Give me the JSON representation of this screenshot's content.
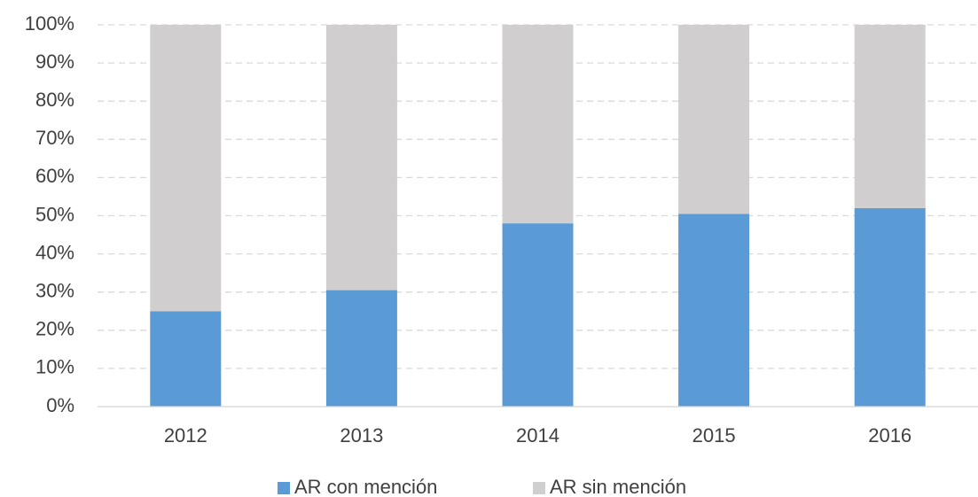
{
  "chart_data": {
    "type": "bar",
    "stacked": true,
    "categories": [
      "2012",
      "2013",
      "2014",
      "2015",
      "2016"
    ],
    "series": [
      {
        "name": "AR con mención",
        "color": "#5b9bd5",
        "values": [
          25,
          30.5,
          48,
          50.5,
          52
        ]
      },
      {
        "name": "AR sin mención",
        "color": "#d0cece",
        "values": [
          75,
          69.5,
          52,
          49.5,
          48
        ]
      }
    ],
    "ylim": [
      0,
      100
    ],
    "yticks": [
      {
        "value": 0,
        "label": "0%"
      },
      {
        "value": 10,
        "label": "10%"
      },
      {
        "value": 20,
        "label": "20%"
      },
      {
        "value": 30,
        "label": "30%"
      },
      {
        "value": 40,
        "label": "40%"
      },
      {
        "value": 50,
        "label": "50%"
      },
      {
        "value": 60,
        "label": "60%"
      },
      {
        "value": 70,
        "label": "70%"
      },
      {
        "value": 80,
        "label": "80%"
      },
      {
        "value": 90,
        "label": "90%"
      },
      {
        "value": 100,
        "label": "100%"
      }
    ],
    "grid": true,
    "legend": "bottom"
  }
}
